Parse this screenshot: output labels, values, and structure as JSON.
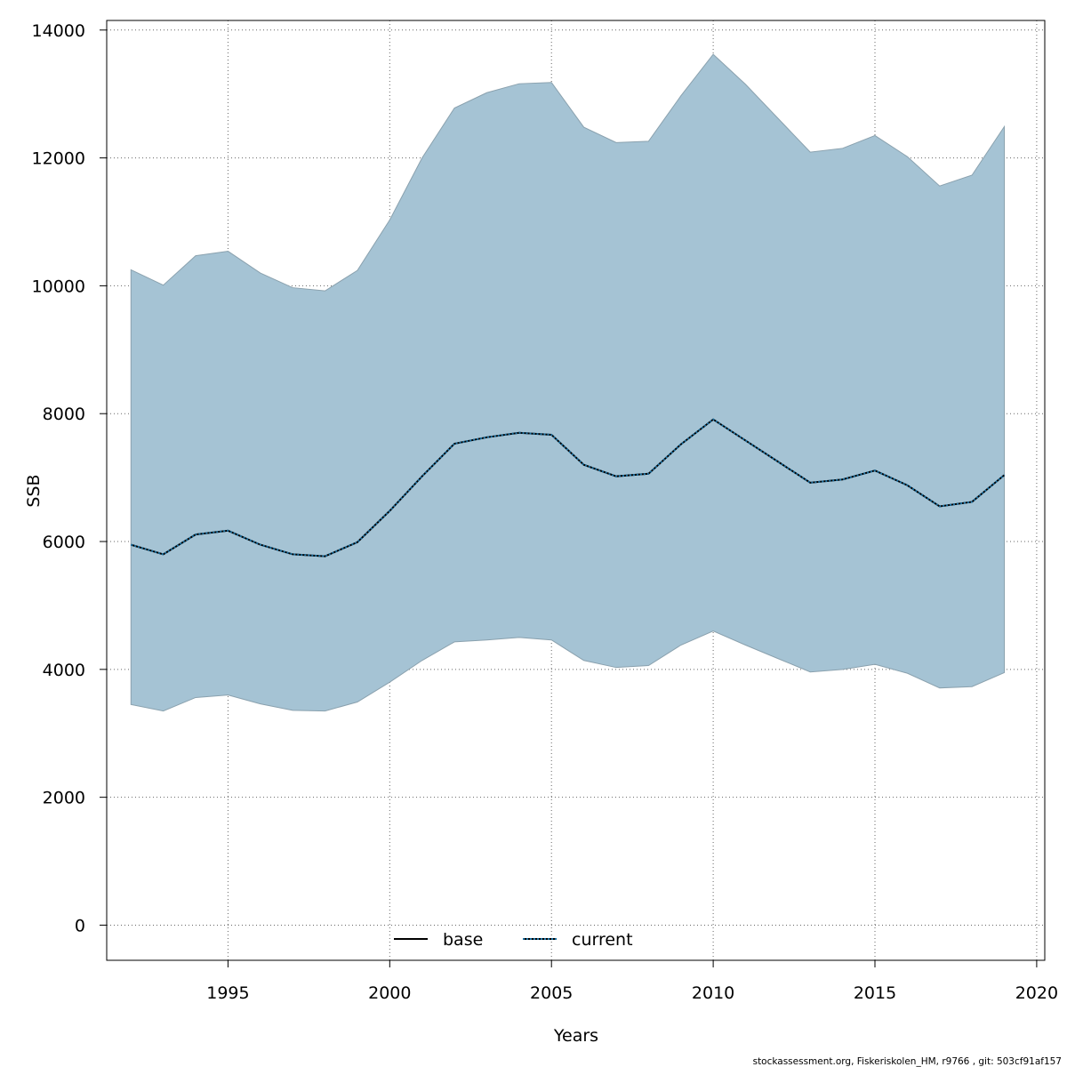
{
  "chart_data": {
    "type": "area",
    "xlabel": "Years",
    "ylabel": "SSB",
    "xlim": [
      1991.25,
      2020.25
    ],
    "ylim": [
      -550,
      14150
    ],
    "x_ticks": [
      1995,
      2000,
      2005,
      2010,
      2015,
      2020
    ],
    "y_ticks": [
      0,
      2000,
      4000,
      6000,
      8000,
      10000,
      12000,
      14000
    ],
    "grid": true,
    "legend_position": "bottom",
    "x": [
      1992,
      1993,
      1994,
      1995,
      1996,
      1997,
      1998,
      1999,
      2000,
      2001,
      2002,
      2003,
      2004,
      2005,
      2006,
      2007,
      2008,
      2009,
      2010,
      2011,
      2012,
      2013,
      2014,
      2015,
      2016,
      2017,
      2018,
      2019
    ],
    "band": {
      "color": "#a5c3d4",
      "upper": [
        10250,
        10010,
        10470,
        10540,
        10200,
        9970,
        9920,
        10240,
        11030,
        12000,
        12780,
        13020,
        13160,
        13180,
        12480,
        12240,
        12260,
        12970,
        13620,
        13150,
        12620,
        12090,
        12150,
        12350,
        12020,
        11560,
        11730,
        12490
      ],
      "lower": [
        3450,
        3350,
        3560,
        3600,
        3460,
        3360,
        3350,
        3490,
        3800,
        4140,
        4430,
        4460,
        4500,
        4460,
        4140,
        4030,
        4060,
        4380,
        4600,
        4380,
        4170,
        3960,
        4000,
        4080,
        3940,
        3710,
        3730,
        3950
      ]
    },
    "series": [
      {
        "name": "base",
        "color": "#000000",
        "style": "solid",
        "values": [
          5950,
          5800,
          6110,
          6170,
          5950,
          5800,
          5770,
          5990,
          6480,
          7020,
          7530,
          7630,
          7700,
          7670,
          7200,
          7020,
          7060,
          7520,
          7910,
          7580,
          7250,
          6920,
          6970,
          7110,
          6880,
          6550,
          6620,
          7040
        ]
      },
      {
        "name": "current",
        "color": "#1a6fa0",
        "style": "dotted",
        "values": [
          5950,
          5800,
          6110,
          6170,
          5950,
          5800,
          5770,
          5990,
          6480,
          7020,
          7530,
          7630,
          7700,
          7670,
          7200,
          7020,
          7060,
          7520,
          7910,
          7580,
          7250,
          6920,
          6970,
          7110,
          6880,
          6550,
          6620,
          7040
        ]
      }
    ]
  },
  "footer": {
    "note": "stockassessment.org, Fiskeriskolen_HM, r9766 , git: 503cf91af157"
  }
}
